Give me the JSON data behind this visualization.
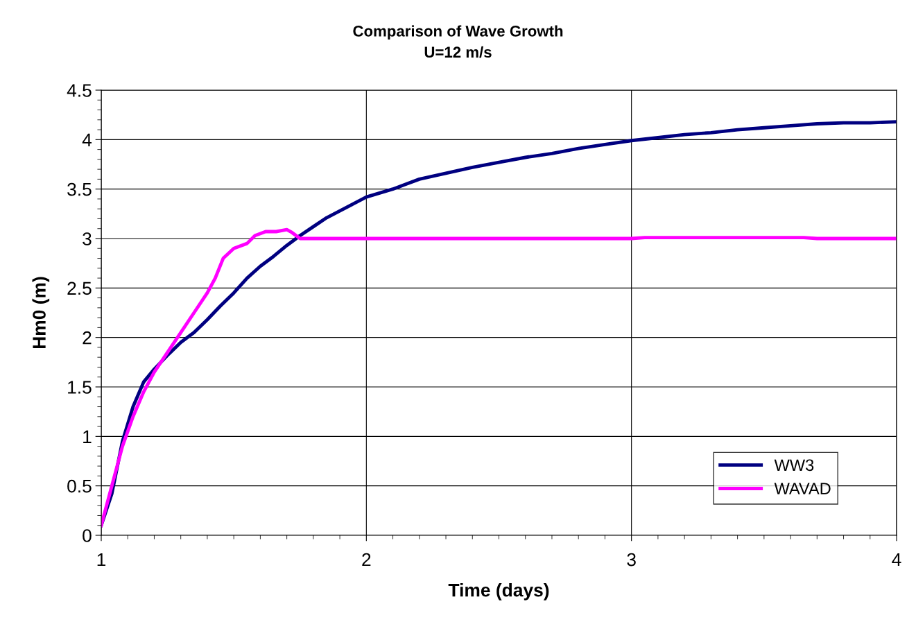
{
  "chart_data": {
    "type": "line",
    "title": "Comparison of Wave Growth\nU=12 m/s",
    "xlabel": "Time (days)",
    "ylabel": "Hm0 (m)",
    "xlim": [
      1,
      4
    ],
    "xticks": [
      1,
      2,
      3,
      4
    ],
    "ylim": [
      0,
      4.5
    ],
    "yticks": [
      0,
      0.5,
      1,
      1.5,
      2,
      2.5,
      3,
      3.5,
      4,
      4.5
    ],
    "grid": true,
    "legend": "bottom right",
    "marker": "none",
    "line_style": "solid",
    "series": [
      {
        "name": "WW3",
        "color": "#000080",
        "x": [
          1.0,
          1.04,
          1.08,
          1.12,
          1.16,
          1.2,
          1.25,
          1.3,
          1.35,
          1.4,
          1.45,
          1.5,
          1.55,
          1.6,
          1.65,
          1.7,
          1.75,
          1.8,
          1.85,
          1.9,
          1.95,
          2.0,
          2.1,
          2.15,
          2.2,
          2.3,
          2.4,
          2.5,
          2.6,
          2.7,
          2.8,
          2.9,
          3.0,
          3.1,
          3.2,
          3.3,
          3.4,
          3.5,
          3.6,
          3.7,
          3.8,
          3.9,
          4.0
        ],
        "values": [
          0.1,
          0.42,
          0.95,
          1.3,
          1.55,
          1.68,
          1.82,
          1.95,
          2.05,
          2.18,
          2.32,
          2.45,
          2.6,
          2.72,
          2.82,
          2.93,
          3.03,
          3.12,
          3.21,
          3.28,
          3.35,
          3.42,
          3.5,
          3.55,
          3.6,
          3.66,
          3.72,
          3.77,
          3.82,
          3.86,
          3.91,
          3.95,
          3.99,
          4.02,
          4.05,
          4.07,
          4.1,
          4.12,
          4.14,
          4.16,
          4.17,
          4.17,
          4.18
        ]
      },
      {
        "name": "WAVAD",
        "color": "#ff00ff",
        "x": [
          1.0,
          1.04,
          1.08,
          1.12,
          1.16,
          1.2,
          1.25,
          1.3,
          1.35,
          1.4,
          1.43,
          1.46,
          1.5,
          1.55,
          1.58,
          1.62,
          1.66,
          1.7,
          1.72,
          1.75,
          2.0,
          3.0,
          3.05,
          3.65,
          3.7,
          4.0
        ],
        "values": [
          0.1,
          0.5,
          0.9,
          1.2,
          1.45,
          1.65,
          1.85,
          2.05,
          2.25,
          2.45,
          2.6,
          2.8,
          2.9,
          2.95,
          3.03,
          3.07,
          3.07,
          3.09,
          3.06,
          3.0,
          3.0,
          3.0,
          3.01,
          3.01,
          3.0,
          3.0
        ]
      }
    ]
  }
}
